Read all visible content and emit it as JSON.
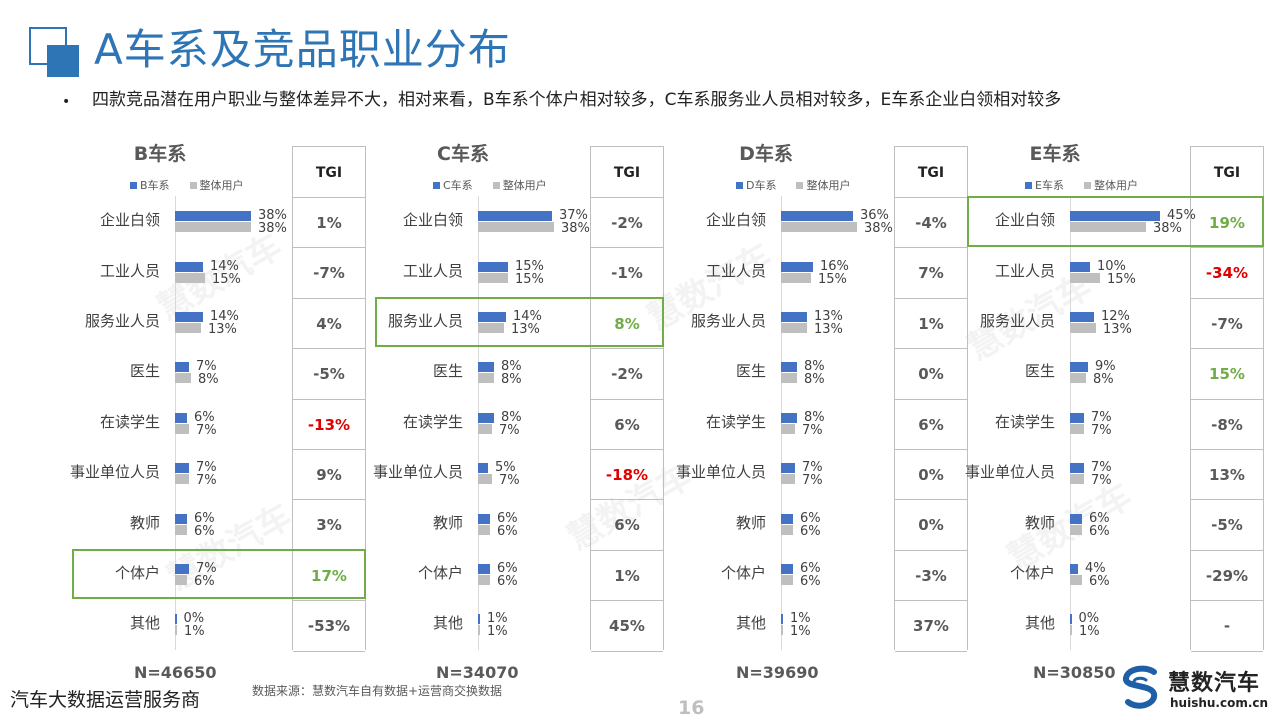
{
  "page": {
    "title": "A车系及竞品职业分布",
    "bullet": "四款竞品潜在用户职业与整体差异不大，相对来看，B车系个体户相对较多，C车系服务业人员相对较多，E车系企业白领相对较多",
    "footer_left": "汽车大数据运营服务商",
    "footer_source": "数据来源：慧数汽车自有数据+运营商交换数据",
    "page_number": "16",
    "brand_name": "慧数汽车",
    "brand_url": "huishu.com.cn",
    "watermark": "慧数汽车",
    "tgi_header": "TGI",
    "legend_overall": "整体用户"
  },
  "colors": {
    "series_brand": "#4472c4",
    "series_overall": "#bfbfbf",
    "title": "#2e75b6",
    "negative": "#e00000",
    "positive": "#70ad47",
    "highlight_box": "#70ad47"
  },
  "chart_data": [
    {
      "type": "bar",
      "orientation": "horizontal",
      "title": "B车系",
      "n": "N=46650",
      "categories": [
        "企业白领",
        "工业人员",
        "服务业人员",
        "医生",
        "在读学生",
        "事业单位人员",
        "教师",
        "个体户",
        "其他"
      ],
      "series": [
        {
          "name": "B车系",
          "values": [
            38,
            14,
            14,
            7,
            6,
            7,
            6,
            7,
            0
          ],
          "labels": [
            "38%",
            "14%",
            "14%",
            "7%",
            "6%",
            "7%",
            "6%",
            "7%",
            "0%"
          ]
        },
        {
          "name": "整体用户",
          "values": [
            38,
            15,
            13,
            8,
            7,
            7,
            6,
            6,
            1
          ],
          "labels": [
            "38%",
            "15%",
            "13%",
            "8%",
            "7%",
            "7%",
            "6%",
            "6%",
            "1%"
          ]
        }
      ],
      "tgi": [
        "1%",
        "-7%",
        "4%",
        "-5%",
        "-13%",
        "9%",
        "3%",
        "17%",
        "-53%"
      ],
      "tgi_style": [
        "",
        "",
        "",
        "",
        "neg",
        "",
        "",
        "pos",
        ""
      ],
      "highlight": 7
    },
    {
      "type": "bar",
      "orientation": "horizontal",
      "title": "C车系",
      "n": "N=34070",
      "categories": [
        "企业白领",
        "工业人员",
        "服务业人员",
        "医生",
        "在读学生",
        "事业单位人员",
        "教师",
        "个体户",
        "其他"
      ],
      "series": [
        {
          "name": "C车系",
          "values": [
            37,
            15,
            14,
            8,
            8,
            5,
            6,
            6,
            1
          ],
          "labels": [
            "37%",
            "15%",
            "14%",
            "8%",
            "8%",
            "5%",
            "6%",
            "6%",
            "1%"
          ]
        },
        {
          "name": "整体用户",
          "values": [
            38,
            15,
            13,
            8,
            7,
            7,
            6,
            6,
            1
          ],
          "labels": [
            "38%",
            "15%",
            "13%",
            "8%",
            "7%",
            "7%",
            "6%",
            "6%",
            "1%"
          ]
        }
      ],
      "tgi": [
        "-2%",
        "-1%",
        "8%",
        "-2%",
        "6%",
        "-18%",
        "6%",
        "1%",
        "45%"
      ],
      "tgi_style": [
        "",
        "",
        "pos",
        "",
        "",
        "neg",
        "",
        "",
        ""
      ],
      "highlight": 2
    },
    {
      "type": "bar",
      "orientation": "horizontal",
      "title": "D车系",
      "n": "N=39690",
      "categories": [
        "企业白领",
        "工业人员",
        "服务业人员",
        "医生",
        "在读学生",
        "事业单位人员",
        "教师",
        "个体户",
        "其他"
      ],
      "series": [
        {
          "name": "D车系",
          "values": [
            36,
            16,
            13,
            8,
            8,
            7,
            6,
            6,
            1
          ],
          "labels": [
            "36%",
            "16%",
            "13%",
            "8%",
            "8%",
            "7%",
            "6%",
            "6%",
            "1%"
          ]
        },
        {
          "name": "整体用户",
          "values": [
            38,
            15,
            13,
            8,
            7,
            7,
            6,
            6,
            1
          ],
          "labels": [
            "38%",
            "15%",
            "13%",
            "8%",
            "7%",
            "7%",
            "6%",
            "6%",
            "1%"
          ]
        }
      ],
      "tgi": [
        "-4%",
        "7%",
        "1%",
        "0%",
        "6%",
        "0%",
        "0%",
        "-3%",
        "37%"
      ],
      "tgi_style": [
        "",
        "",
        "",
        "",
        "",
        "",
        "",
        "",
        ""
      ],
      "highlight": -1
    },
    {
      "type": "bar",
      "orientation": "horizontal",
      "title": "E车系",
      "n": "N=30850",
      "categories": [
        "企业白领",
        "工业人员",
        "服务业人员",
        "医生",
        "在读学生",
        "事业单位人员",
        "教师",
        "个体户",
        "其他"
      ],
      "series": [
        {
          "name": "E车系",
          "values": [
            45,
            10,
            12,
            9,
            7,
            7,
            6,
            4,
            0
          ],
          "labels": [
            "45%",
            "10%",
            "12%",
            "9%",
            "7%",
            "7%",
            "6%",
            "4%",
            "0%"
          ]
        },
        {
          "name": "整体用户",
          "values": [
            38,
            15,
            13,
            8,
            7,
            7,
            6,
            6,
            1
          ],
          "labels": [
            "38%",
            "15%",
            "13%",
            "8%",
            "7%",
            "7%",
            "6%",
            "6%",
            "1%"
          ]
        }
      ],
      "tgi": [
        "19%",
        "-34%",
        "-7%",
        "15%",
        "-8%",
        "13%",
        "-5%",
        "-29%",
        "-"
      ],
      "tgi_style": [
        "pos",
        "neg",
        "",
        "pos",
        "",
        "",
        "",
        "",
        ""
      ],
      "highlight": 0
    }
  ]
}
